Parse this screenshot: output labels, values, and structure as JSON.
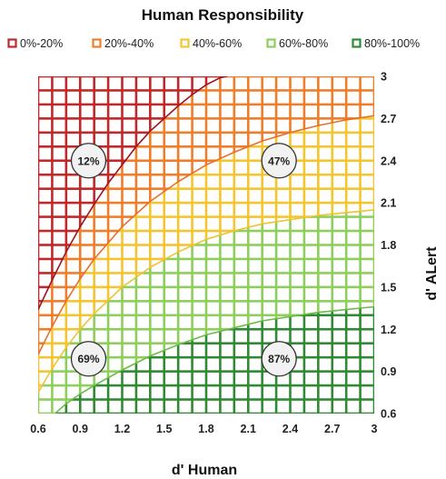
{
  "chart_data": {
    "type": "area",
    "title": "Human Responsibility",
    "xlabel": "d' Human",
    "ylabel": "d' ALert",
    "xlim": [
      0.6,
      3.0
    ],
    "ylim": [
      0.6,
      3.0
    ],
    "x_ticks": [
      "0.6",
      "0.9",
      "1.2",
      "1.5",
      "1.8",
      "2.1",
      "2.4",
      "2.7",
      "3"
    ],
    "y_ticks": [
      "0.6",
      "0.9",
      "1.2",
      "1.5",
      "1.8",
      "2.1",
      "2.4",
      "2.7",
      "3"
    ],
    "grid_step": 0.1,
    "legend_position": "top",
    "legend": [
      {
        "label": "0%-20%",
        "color": "#c0282a"
      },
      {
        "label": "20%-40%",
        "color": "#f07d2a"
      },
      {
        "label": "40%-60%",
        "color": "#f2c531"
      },
      {
        "label": "60%-80%",
        "color": "#8dcf5a"
      },
      {
        "label": "80%-100%",
        "color": "#2f8a33"
      }
    ],
    "boundaries": [
      {
        "between": "0%-20% / 20%-40%",
        "color": "#a0141c",
        "x": [
          0.6,
          0.7,
          0.8,
          0.9,
          1.0,
          1.1,
          1.2,
          1.3,
          1.4,
          1.5,
          1.6,
          1.7,
          1.8,
          1.9,
          1.95
        ],
        "y": [
          1.34,
          1.55,
          1.75,
          1.93,
          2.09,
          2.24,
          2.37,
          2.5,
          2.61,
          2.7,
          2.79,
          2.87,
          2.94,
          2.99,
          3.0
        ]
      },
      {
        "between": "20%-40% / 40%-60%",
        "color": "#e8702a",
        "x": [
          0.6,
          0.7,
          0.8,
          0.9,
          1.0,
          1.2,
          1.4,
          1.6,
          1.8,
          2.0,
          2.2,
          2.4,
          2.6,
          2.8,
          3.0
        ],
        "y": [
          1.02,
          1.22,
          1.4,
          1.56,
          1.7,
          1.93,
          2.11,
          2.25,
          2.37,
          2.46,
          2.54,
          2.6,
          2.65,
          2.69,
          2.72
        ]
      },
      {
        "between": "40%-60% / 60%-80%",
        "color": "#eec334",
        "x": [
          0.6,
          0.7,
          0.8,
          0.9,
          1.0,
          1.2,
          1.4,
          1.6,
          1.8,
          2.0,
          2.2,
          2.4,
          2.6,
          2.8,
          3.0
        ],
        "y": [
          0.75,
          0.92,
          1.07,
          1.2,
          1.31,
          1.5,
          1.64,
          1.75,
          1.84,
          1.9,
          1.95,
          1.98,
          2.01,
          2.03,
          2.05
        ]
      },
      {
        "between": "60%-80% / 80%-100%",
        "color": "#6cbb45",
        "x": [
          0.72,
          0.8,
          0.9,
          1.0,
          1.2,
          1.4,
          1.6,
          1.8,
          2.0,
          2.2,
          2.4,
          2.6,
          2.8,
          3.0
        ],
        "y": [
          0.6,
          0.67,
          0.74,
          0.8,
          0.91,
          1.01,
          1.09,
          1.16,
          1.21,
          1.26,
          1.29,
          1.32,
          1.34,
          1.36
        ]
      }
    ],
    "annotations": [
      {
        "text": "12%",
        "x": 0.96,
        "y": 2.4
      },
      {
        "text": "47%",
        "x": 2.32,
        "y": 2.4
      },
      {
        "text": "69%",
        "x": 0.96,
        "y": 0.99
      },
      {
        "text": "87%",
        "x": 2.32,
        "y": 0.99
      }
    ]
  }
}
